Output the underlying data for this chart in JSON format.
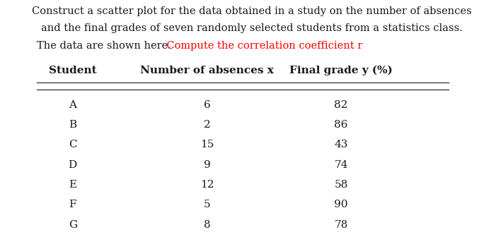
{
  "title_line1": "Construct a scatter plot for the data obtained in a study on the number of absences",
  "title_line2": "and the final grades of seven randomly selected students from a statistics class.",
  "title_line3_black": "The data are shown here.",
  "title_line3_red": "  Compute the correlation coefficient r",
  "col_headers": [
    "Student",
    "Number of absences x",
    "Final grade y (%)"
  ],
  "students": [
    "A",
    "B",
    "C",
    "D",
    "E",
    "F",
    "G"
  ],
  "absences": [
    6,
    2,
    15,
    9,
    12,
    5,
    8
  ],
  "grades": [
    82,
    86,
    43,
    74,
    58,
    90,
    78
  ],
  "bg_color": "#ffffff",
  "text_color": "#1a1a1a",
  "red_color": "#ff0000",
  "header_fontsize": 11,
  "body_fontsize": 11,
  "title_fontsize": 10.5
}
